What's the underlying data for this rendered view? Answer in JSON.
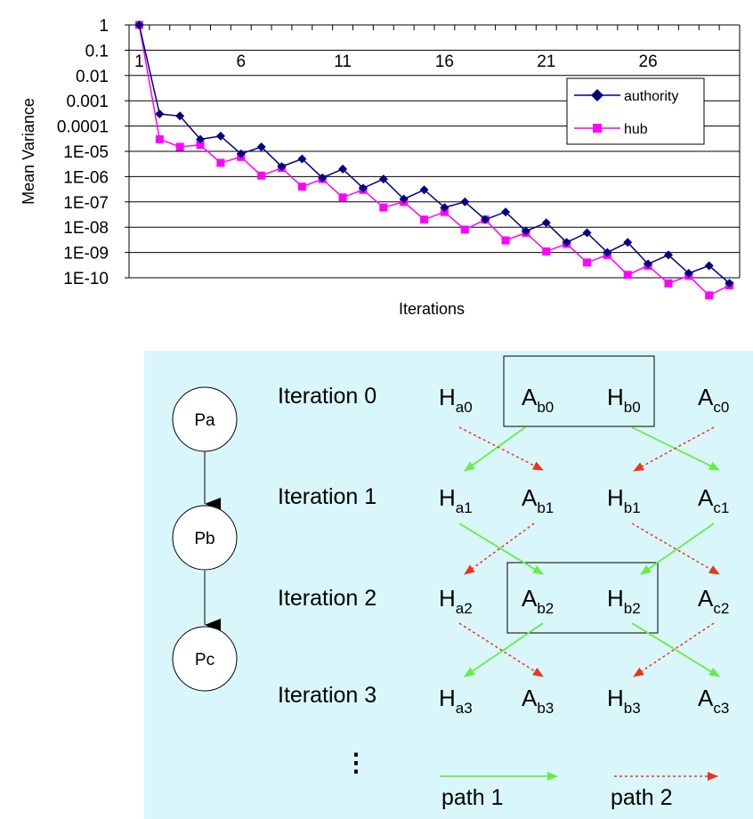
{
  "chart_data": {
    "type": "line",
    "title": "",
    "xlabel": "Iterations",
    "ylabel": "Mean Variance",
    "y_scale": "log",
    "ylim": [
      1e-10,
      1
    ],
    "yticks": [
      "1",
      "0.1",
      "0.01",
      "0.001",
      "0.0001",
      "1E-05",
      "1E-06",
      "1E-07",
      "1E-08",
      "1E-09",
      "1E-10"
    ],
    "xticks": [
      "1",
      "6",
      "11",
      "16",
      "21",
      "26"
    ],
    "x": [
      1,
      2,
      3,
      4,
      5,
      6,
      7,
      8,
      9,
      10,
      11,
      12,
      13,
      14,
      15,
      16,
      17,
      18,
      19,
      20,
      21,
      22,
      23,
      24,
      25,
      26,
      27,
      28,
      29,
      30
    ],
    "grid": true,
    "legend_position": "top-right",
    "series": [
      {
        "name": "authority",
        "color": "#000080",
        "marker": "diamond",
        "values": [
          1,
          0.0003,
          0.00025,
          3e-05,
          4e-05,
          8e-06,
          1.5e-05,
          2.5e-06,
          5e-06,
          9e-07,
          2e-06,
          3.5e-07,
          8e-07,
          1.3e-07,
          3e-07,
          6e-08,
          1e-07,
          2e-08,
          4e-08,
          7e-09,
          1.5e-08,
          2.5e-09,
          6e-09,
          1e-09,
          2.5e-09,
          3.5e-10,
          8e-10,
          1.5e-10,
          3e-10,
          6e-11
        ]
      },
      {
        "name": "hub",
        "color": "#FF00FF",
        "marker": "square",
        "values": [
          1,
          3e-05,
          1.5e-05,
          1.8e-05,
          3.5e-06,
          6e-06,
          1.1e-06,
          2.2e-06,
          4e-07,
          8e-07,
          1.5e-07,
          3e-07,
          6e-08,
          1e-07,
          2e-08,
          4e-08,
          8e-09,
          2e-08,
          3e-09,
          6e-09,
          1.1e-09,
          2.2e-09,
          4e-10,
          8e-10,
          1.3e-10,
          3e-10,
          6e-11,
          1.2e-10,
          2e-11,
          5e-11
        ]
      }
    ]
  },
  "diagram": {
    "background": "#D9F7FA",
    "nodes": [
      "Pa",
      "Pb",
      "Pc"
    ],
    "iterations": [
      "Iteration 0",
      "Iteration 1",
      "Iteration 2",
      "Iteration 3"
    ],
    "rows": [
      [
        {
          "m": "H",
          "s": "a0"
        },
        {
          "m": "A",
          "s": "b0"
        },
        {
          "m": "H",
          "s": "b0"
        },
        {
          "m": "A",
          "s": "c0"
        }
      ],
      [
        {
          "m": "H",
          "s": "a1"
        },
        {
          "m": "A",
          "s": "b1"
        },
        {
          "m": "H",
          "s": "b1"
        },
        {
          "m": "A",
          "s": "c1"
        }
      ],
      [
        {
          "m": "H",
          "s": "a2"
        },
        {
          "m": "A",
          "s": "b2"
        },
        {
          "m": "H",
          "s": "b2"
        },
        {
          "m": "A",
          "s": "c2"
        }
      ],
      [
        {
          "m": "H",
          "s": "a3"
        },
        {
          "m": "A",
          "s": "b3"
        },
        {
          "m": "H",
          "s": "b3"
        },
        {
          "m": "A",
          "s": "c3"
        }
      ]
    ],
    "ellipsis": "⋮",
    "legend": {
      "path1": {
        "label": "path 1",
        "color": "#66EE44"
      },
      "path2": {
        "label": "path 2",
        "color": "#EE3322"
      }
    }
  }
}
